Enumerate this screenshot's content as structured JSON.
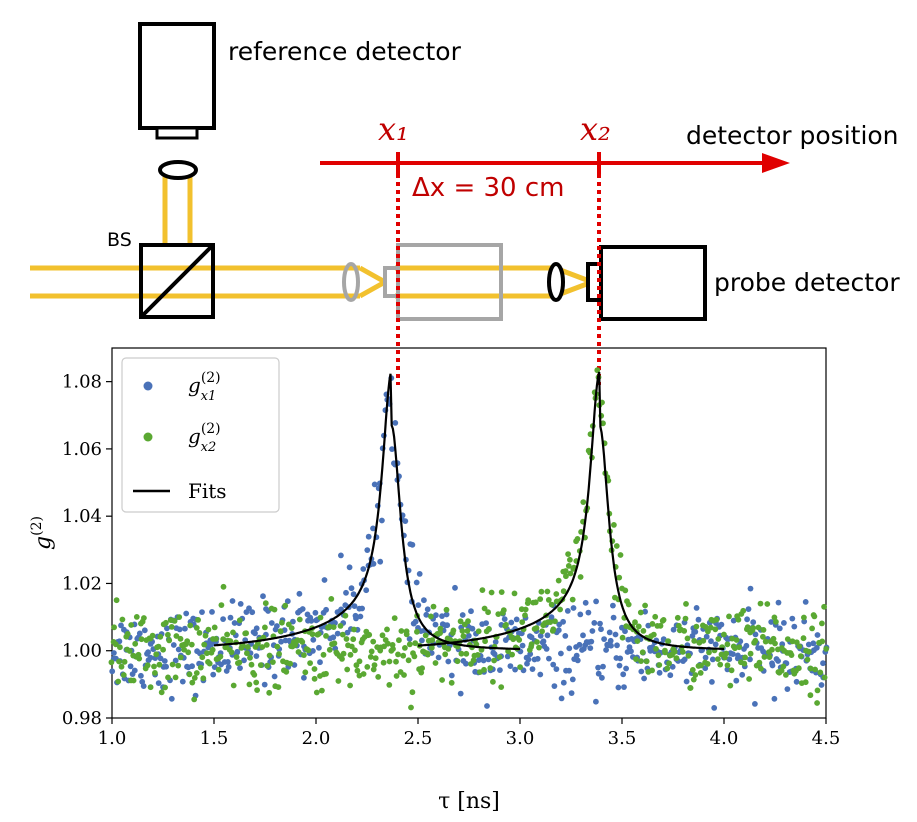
{
  "setup": {
    "reference_label": "reference detector",
    "probe_label": "probe detector",
    "bs_label": "BS",
    "position_axis_label": "detector position",
    "x1_label": "x₁",
    "x2_label": "x₂",
    "delta_label": "Δx = 30 cm",
    "colors": {
      "beam": "#f2c12e",
      "axis": "#e00000",
      "ghost": "#a6a6a6"
    }
  },
  "chart_data": {
    "type": "scatter",
    "xlabel": "τ [ns]",
    "ylabel": "g(2)",
    "xlim": [
      1.0,
      4.5
    ],
    "ylim": [
      0.98,
      1.09
    ],
    "xticks": [
      "1.0",
      "1.5",
      "2.0",
      "2.5",
      "3.0",
      "3.5",
      "4.0",
      "4.5"
    ],
    "yticks": [
      "0.98",
      "1.00",
      "1.02",
      "1.04",
      "1.06",
      "1.08"
    ],
    "legend_position": "top-left",
    "series": [
      {
        "name": "g(2) x1",
        "color": "#4a72b8",
        "peak_tau": 2.37,
        "peak_height": 1.068,
        "noise": 0.006
      },
      {
        "name": "g(2) x2",
        "color": "#5aa832",
        "peak_tau": 3.39,
        "peak_height": 1.068,
        "noise": 0.006
      }
    ],
    "fits": {
      "name": "Fits",
      "color": "#000000",
      "curves": [
        {
          "tau_range": [
            1.5,
            3.0
          ],
          "center": 2.37,
          "baseline": 1.0,
          "amplitude": 0.067
        },
        {
          "tau_range": [
            2.5,
            4.0
          ],
          "center": 3.39,
          "baseline": 1.0,
          "amplitude": 0.067
        }
      ]
    },
    "legend": {
      "entries": [
        "g",
        "g",
        "Fits"
      ],
      "superscript": "(2)",
      "subscripts": [
        "x1",
        "x2"
      ]
    }
  }
}
